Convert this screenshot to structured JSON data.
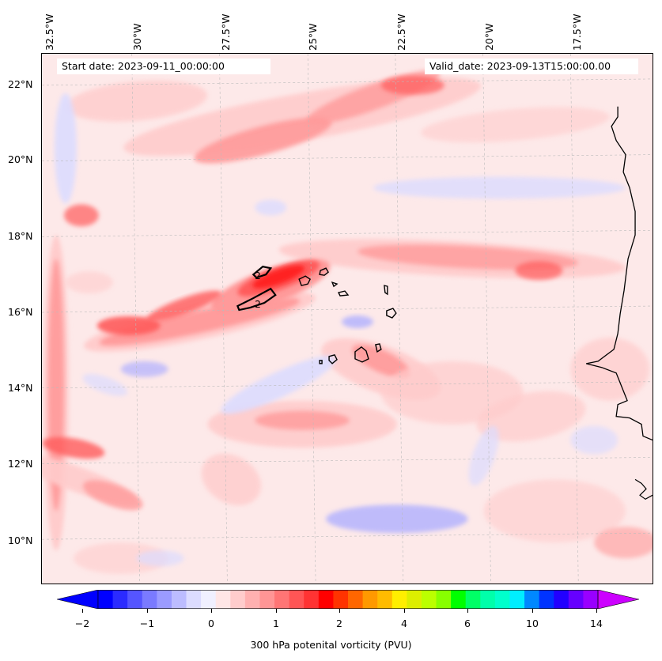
{
  "map": {
    "start_date": "Start date: 2023-09-11_00:00:00",
    "valid_date": "Valid_date: 2023-09-13T15:00:00.00",
    "longitude_labels": [
      "32.5°W",
      "30°W",
      "27.5°W",
      "25°W",
      "22.5°W",
      "20°W",
      "17.5°W"
    ],
    "latitude_labels": [
      "22°N",
      "20°N",
      "18°N",
      "16°N",
      "14°N",
      "12°N",
      "10°N"
    ],
    "contour_labels": [
      "2",
      "2"
    ],
    "extent": {
      "lon_min": -33.5,
      "lon_max": -15.0,
      "lat_min": 8.8,
      "lat_max": 22.8
    }
  },
  "colorbar": {
    "title": "300 hPa potenital vorticity (PVU)",
    "tick_labels": [
      "−2",
      "−1",
      "0",
      "1",
      "2",
      "4",
      "6",
      "10",
      "14"
    ],
    "colors": [
      "#0000ff",
      "#2b2bff",
      "#5555ff",
      "#7a7aff",
      "#9b9bff",
      "#bcbcff",
      "#dcdcff",
      "#f0f0ff",
      "#ffe6e6",
      "#ffcccc",
      "#ffb0b0",
      "#ff9595",
      "#ff7575",
      "#ff5555",
      "#ff3333",
      "#ff0000",
      "#ff3300",
      "#ff6600",
      "#ff9900",
      "#ffbb00",
      "#ffee00",
      "#ddee00",
      "#bbff00",
      "#88ff00",
      "#00ff00",
      "#00ff66",
      "#00ffaa",
      "#00ffcc",
      "#00eeff",
      "#0088ff",
      "#0033ff",
      "#2200ff",
      "#6600ff",
      "#9900ff"
    ],
    "extend_left_color": "#0000ff",
    "extend_right_color": "#cc00ff"
  }
}
